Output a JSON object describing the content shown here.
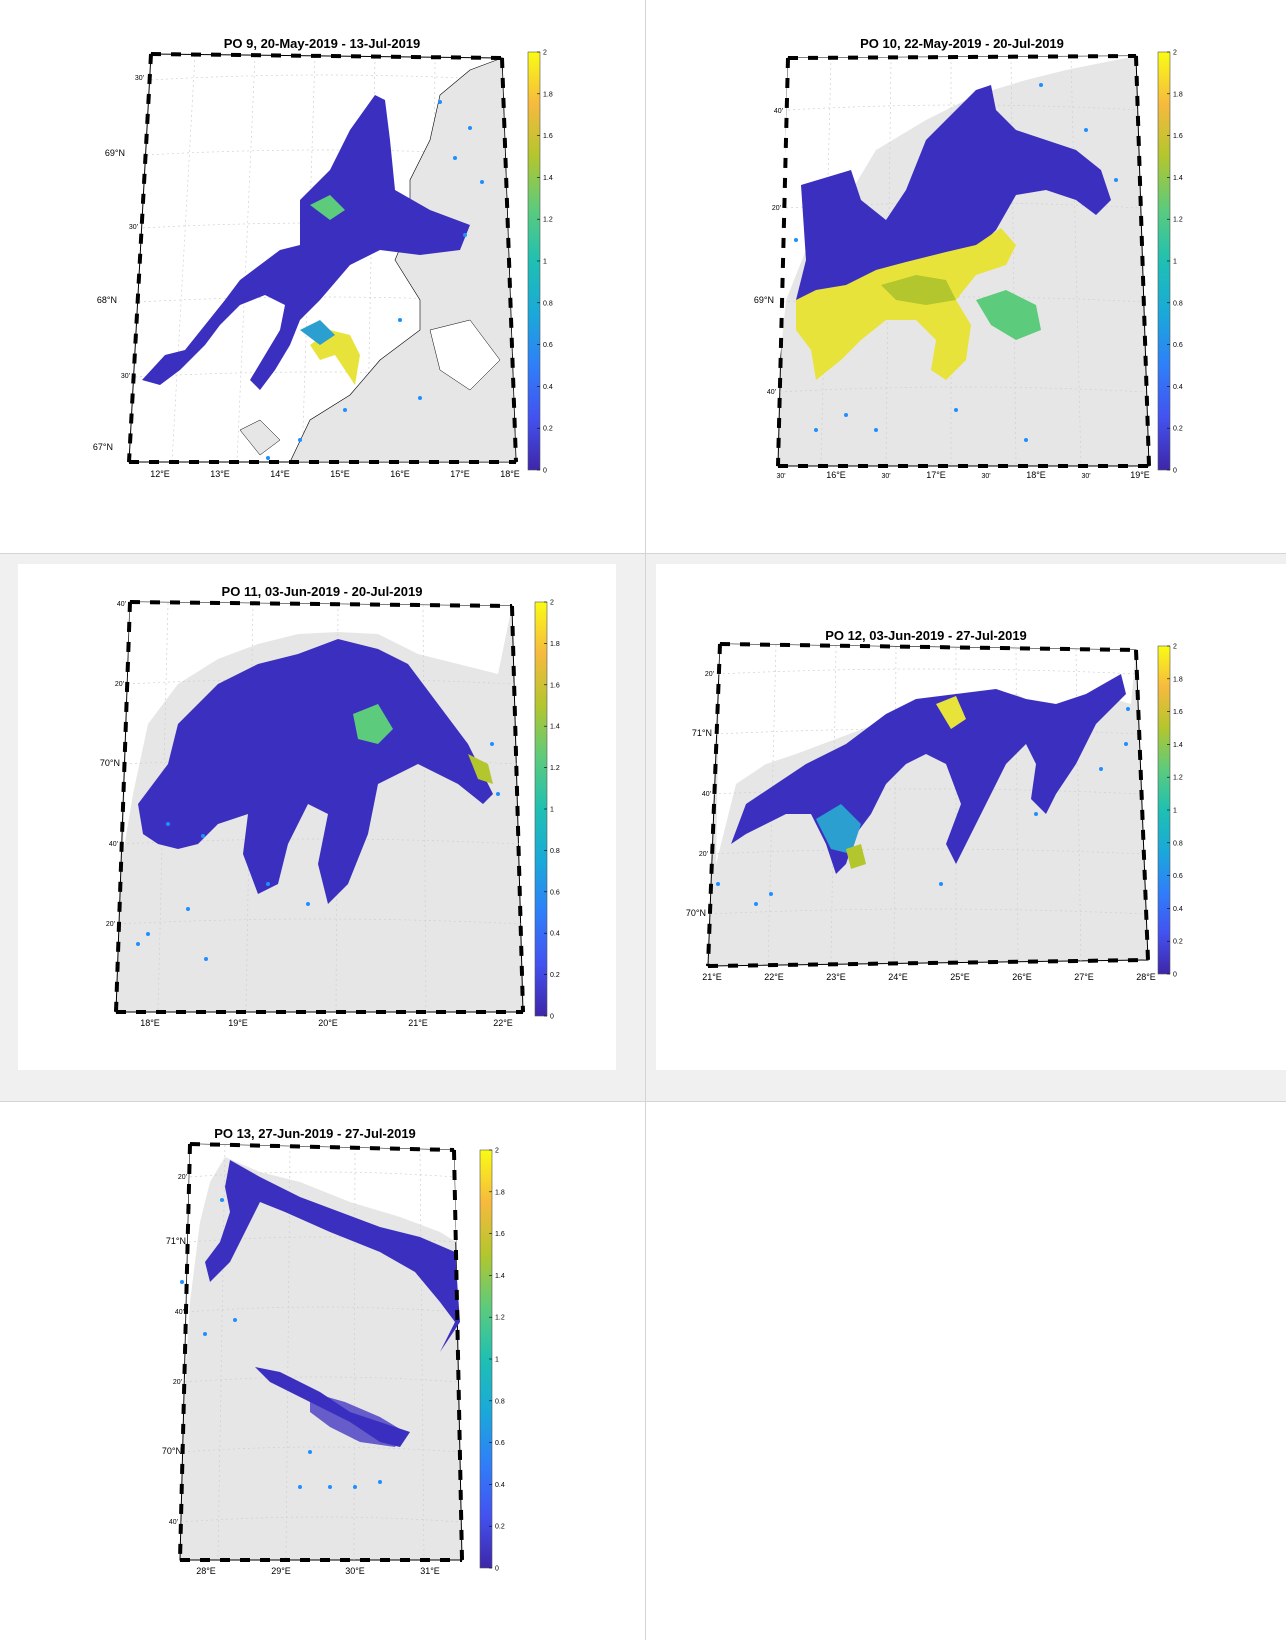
{
  "colors": {
    "land": "#e6e6e6",
    "sea": "#ffffff",
    "fjord_low": "#3b2fc0",
    "fjord_mid": "#2a9fd0",
    "fjord_high": "#f5e620",
    "station": "#1f8fff",
    "colormap": [
      "#3e26a8",
      "#4352f0",
      "#2f7ff9",
      "#1aa9d9",
      "#1fc0b2",
      "#5dcb7c",
      "#b3c62e",
      "#f6ba3e",
      "#f9fb15"
    ]
  },
  "colorbar_ticks": [
    "0",
    "0.2",
    "0.4",
    "0.6",
    "0.8",
    "1",
    "1.2",
    "1.4",
    "1.6",
    "1.8",
    "2"
  ],
  "panels": [
    {
      "title": "PO 9, 20-May-2019  - 13-Jul-2019",
      "lon_labels": [
        "12",
        "13",
        "14",
        "15",
        "16",
        "17",
        "18"
      ],
      "lat_labels": [
        "67",
        "30'",
        "68",
        "30'",
        "69",
        "30'",
        "30'"
      ],
      "lat_main": [
        "67°N",
        "68°N",
        "69°N"
      ],
      "lat_minor": [
        "30'",
        "30'",
        "30'"
      ]
    },
    {
      "title": "PO 10, 22-May-2019  - 20-Jul-2019",
      "lon_main": [
        "16°E",
        "17°E",
        "18°E",
        "19°E"
      ],
      "lon_minor": [
        "30'",
        "30'",
        "30'",
        "30'"
      ],
      "lat_main": [
        "69°N"
      ],
      "lat_minor": [
        "40'",
        "20'",
        "40'"
      ]
    },
    {
      "title": "PO 11, 03-Jun-2019  - 20-Jul-2019",
      "lon_main": [
        "18°E",
        "19°E",
        "20°E",
        "21°E",
        "22°E"
      ],
      "lat_main": [
        "70°N"
      ],
      "lat_minor": [
        "40'",
        "20'",
        "40'",
        "20'"
      ]
    },
    {
      "title": "PO 12, 03-Jun-2019  - 27-Jul-2019",
      "lon_main": [
        "21°E",
        "22°E",
        "23°E",
        "24°E",
        "25°E",
        "26°E",
        "27°E",
        "28°E"
      ],
      "lat_main": [
        "71°N",
        "70°N"
      ],
      "lat_minor": [
        "20'",
        "40'",
        "20'"
      ]
    },
    {
      "title": "PO 13, 27-Jun-2019  - 27-Jul-2019",
      "lon_main": [
        "28°E",
        "29°E",
        "30°E",
        "31°E"
      ],
      "lat_main": [
        "71°N",
        "70°N"
      ],
      "lat_minor": [
        "20'",
        "40'",
        "20'",
        "40'"
      ]
    }
  ]
}
